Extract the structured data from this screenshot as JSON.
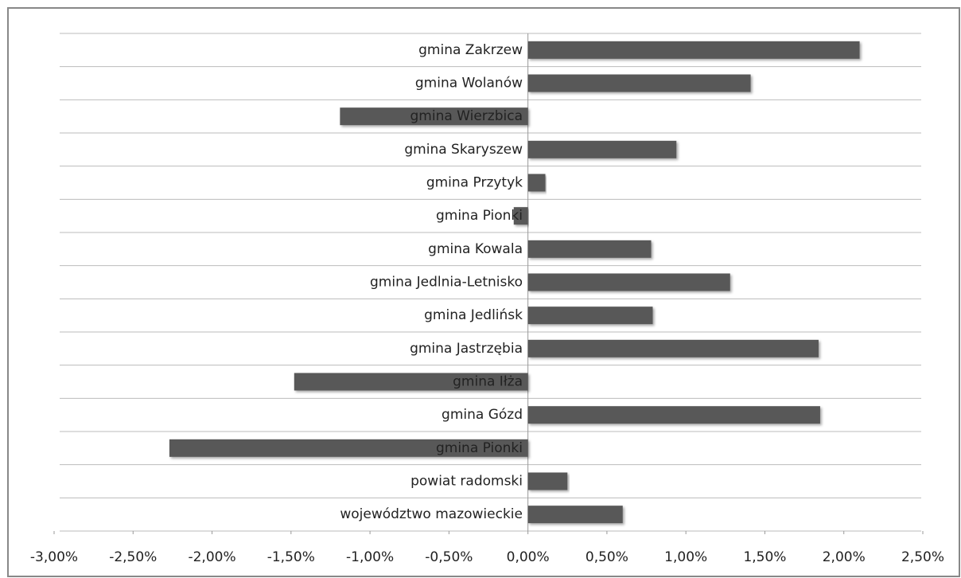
{
  "chart_data": {
    "type": "bar",
    "orientation": "horizontal",
    "categories": [
      "gmina Zakrzew",
      "gmina Wolanów",
      "gmina Wierzbica",
      "gmina Skaryszew",
      "gmina Przytyk",
      "gmina Pionki",
      "gmina Kowala",
      "gmina Jedlnia-Letnisko",
      "gmina Jedlińsk",
      "gmina Jastrzębia",
      "gmina Iłża",
      "gmina Gózd",
      "gmina Pionki",
      "powiat radomski",
      "województwo mazowieckie"
    ],
    "values": [
      2.1,
      1.41,
      -1.19,
      0.94,
      0.11,
      -0.09,
      0.78,
      1.28,
      0.79,
      1.84,
      -1.48,
      1.85,
      -2.27,
      0.25,
      0.6
    ],
    "color": "#595959",
    "xlim": [
      -3,
      2.5
    ],
    "xticks": [
      {
        "value": -3,
        "label": "-3,00%"
      },
      {
        "value": -2.5,
        "label": "-2,50%"
      },
      {
        "value": -2,
        "label": "-2,00%"
      },
      {
        "value": -1.5,
        "label": "-1,50%"
      },
      {
        "value": -1,
        "label": "-1,00%"
      },
      {
        "value": -0.5,
        "label": "-0,50%"
      },
      {
        "value": 0,
        "label": "0,00%"
      },
      {
        "value": 0.5,
        "label": "0,50%"
      },
      {
        "value": 1,
        "label": "1,00%"
      },
      {
        "value": 1.5,
        "label": "1,50%"
      },
      {
        "value": 2,
        "label": "2,00%"
      },
      {
        "value": 2.5,
        "label": "2,50%"
      }
    ]
  }
}
